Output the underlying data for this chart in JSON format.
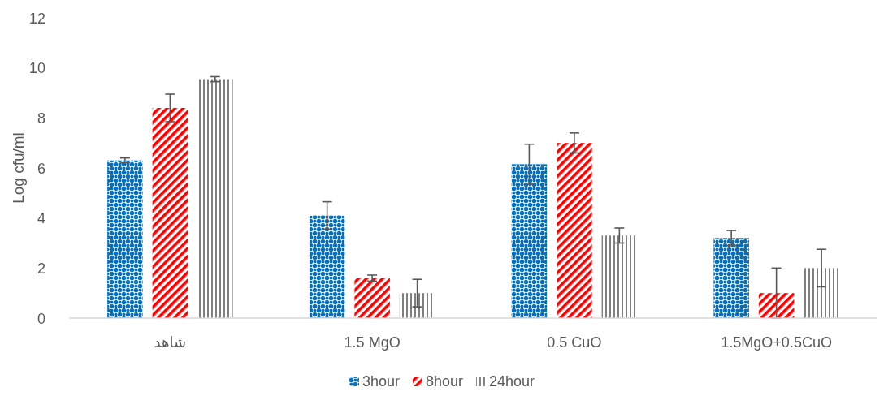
{
  "chart_data": {
    "type": "bar",
    "ylabel": "Log cfu/ml",
    "categories": [
      "شاهد",
      "1.5 MgO",
      "0.5 CuO",
      "1.5MgO+0.5CuO"
    ],
    "series": [
      {
        "name": "3hour",
        "color": "#0070c0",
        "values": [
          6.3,
          4.1,
          6.15,
          3.2
        ],
        "errors": [
          0.1,
          0.55,
          0.8,
          0.3
        ]
      },
      {
        "name": "8hour",
        "color": "#ff0000",
        "values": [
          8.4,
          1.6,
          7.0,
          1.0
        ],
        "errors": [
          0.55,
          0.12,
          0.4,
          1.0
        ]
      },
      {
        "name": "24hour",
        "color": "#7f7f7f",
        "values": [
          9.55,
          1.0,
          3.3,
          2.0
        ],
        "errors": [
          0.1,
          0.55,
          0.3,
          0.75
        ]
      }
    ],
    "ylim": [
      0,
      12
    ],
    "yticks": [
      0,
      2,
      4,
      6,
      8,
      10,
      12
    ],
    "legend": "bottom"
  }
}
